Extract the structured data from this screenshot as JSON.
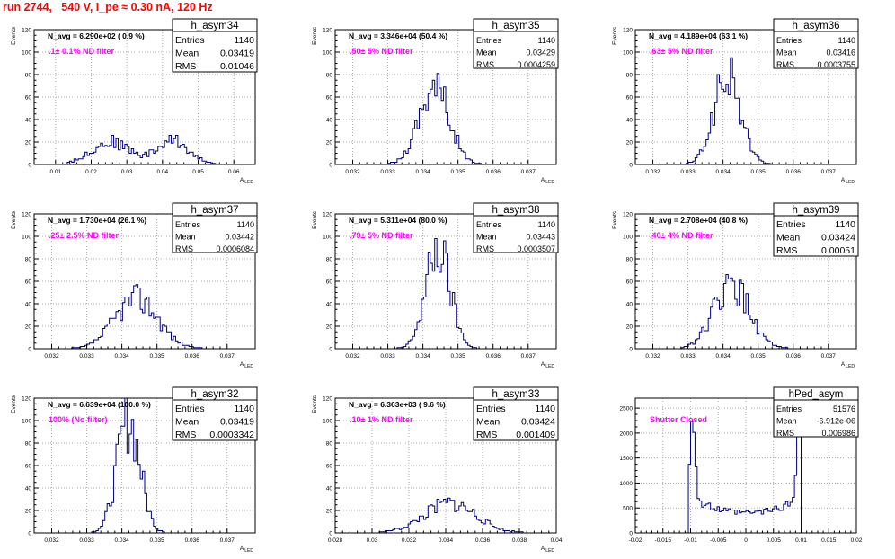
{
  "run_title": "run 2744,   540 V, I_pe ≈ 0.30 nA, 120 Hz",
  "chart_data": [
    {
      "type": "histogram",
      "ylabel": "Events",
      "xlabel": "A_LED",
      "xlim": [
        0.004,
        0.066
      ],
      "ylim": [
        0,
        120
      ],
      "xticks": [
        0.01,
        0.02,
        0.03,
        0.04,
        0.05,
        0.06
      ],
      "xtick_labels": [
        "0.01",
        "0.02",
        "0.03",
        "0.04",
        "0.05",
        "0.06"
      ],
      "yticks": [
        0,
        20,
        40,
        60,
        80,
        100,
        120
      ],
      "annotation": "N_avg = 6.290e+02 ( 0.9 %)",
      "filter_label": ".1± 0.1% ND filter",
      "stats": {
        "name": "h_asym34",
        "rows": [
          [
            "Entries",
            "1140"
          ],
          [
            "Mean",
            "0.03419"
          ],
          [
            "RMS",
            "0.01046"
          ]
        ]
      },
      "profile": {
        "type": "bimodal",
        "peaks": [
          {
            "mu": 0.0255,
            "sigma": 0.0055,
            "amp": 20
          },
          {
            "mu": 0.043,
            "sigma": 0.0045,
            "amp": 21
          }
        ],
        "range": [
          0.013,
          0.056
        ],
        "seed": 34
      }
    },
    {
      "type": "histogram",
      "ylabel": "Events",
      "xlabel": "A_LED",
      "xlim": [
        0.0315,
        0.0378
      ],
      "ylim": [
        0,
        120
      ],
      "xticks": [
        0.032,
        0.033,
        0.034,
        0.035,
        0.036,
        0.037
      ],
      "xtick_labels": [
        "0.032",
        "0.033",
        "0.034",
        "0.035",
        "0.036",
        "0.037"
      ],
      "yticks": [
        0,
        20,
        40,
        60,
        80,
        100,
        120
      ],
      "annotation": "N_avg = 3.346e+04 (50.4 %)",
      "filter_label": ".50± 5% ND filter",
      "stats": {
        "name": "h_asym35",
        "rows": [
          [
            "Entries",
            "1140"
          ],
          [
            "Mean",
            "0.03429"
          ],
          [
            "RMS",
            "0.0004259"
          ]
        ]
      },
      "profile": {
        "type": "gauss",
        "peaks": [
          {
            "mu": 0.03432,
            "sigma": 0.00043,
            "amp": 70
          }
        ],
        "range": [
          0.0326,
          0.0363
        ],
        "seed": 35
      }
    },
    {
      "type": "histogram",
      "ylabel": "Events",
      "xlabel": "A_LED",
      "xlim": [
        0.0315,
        0.0378
      ],
      "ylim": [
        0,
        120
      ],
      "xticks": [
        0.032,
        0.033,
        0.034,
        0.035,
        0.036,
        0.037
      ],
      "xtick_labels": [
        "0.032",
        "0.033",
        "0.034",
        "0.035",
        "0.036",
        "0.037"
      ],
      "yticks": [
        0,
        20,
        40,
        60,
        80,
        100,
        120
      ],
      "annotation": "N_avg = 4.189e+04 (63.1 %)",
      "filter_label": ".63± 5% ND filter",
      "stats": {
        "name": "h_asym36",
        "rows": [
          [
            "Entries",
            "1140"
          ],
          [
            "Mean",
            "0.03416"
          ],
          [
            "RMS",
            "0.0003755"
          ]
        ]
      },
      "profile": {
        "type": "gauss",
        "peaks": [
          {
            "mu": 0.03412,
            "sigma": 0.00038,
            "amp": 78
          }
        ],
        "range": [
          0.0328,
          0.0356
        ],
        "seed": 36
      }
    },
    {
      "type": "histogram",
      "ylabel": "Events",
      "xlabel": "A_LED",
      "xlim": [
        0.0315,
        0.0378
      ],
      "ylim": [
        0,
        120
      ],
      "xticks": [
        0.032,
        0.033,
        0.034,
        0.035,
        0.036,
        0.037
      ],
      "xtick_labels": [
        "0.032",
        "0.033",
        "0.034",
        "0.035",
        "0.036",
        "0.037"
      ],
      "yticks": [
        0,
        20,
        40,
        60,
        80,
        100,
        120
      ],
      "annotation": "N_avg = 1.730e+04 (26.1 %)",
      "filter_label": ".25± 2.5% ND filter",
      "stats": {
        "name": "h_asym37",
        "rows": [
          [
            "Entries",
            "1140"
          ],
          [
            "Mean",
            "0.03442"
          ],
          [
            "RMS",
            "0.0006084"
          ]
        ]
      },
      "profile": {
        "type": "gauss",
        "peaks": [
          {
            "mu": 0.03442,
            "sigma": 0.00061,
            "amp": 45
          }
        ],
        "range": [
          0.0325,
          0.0365
        ],
        "seed": 37
      }
    },
    {
      "type": "histogram",
      "ylabel": "Events",
      "xlabel": "A_LED",
      "xlim": [
        0.0315,
        0.0378
      ],
      "ylim": [
        0,
        120
      ],
      "xticks": [
        0.032,
        0.033,
        0.034,
        0.035,
        0.036,
        0.037
      ],
      "xtick_labels": [
        "0.032",
        "0.033",
        "0.034",
        "0.035",
        "0.036",
        "0.037"
      ],
      "yticks": [
        0,
        20,
        40,
        60,
        80,
        100,
        120
      ],
      "annotation": "N_avg = 5.311e+04 (80.0 %)",
      "filter_label": ".79± 5% ND filter",
      "stats": {
        "name": "h_asym38",
        "rows": [
          [
            "Entries",
            "1140"
          ],
          [
            "Mean",
            "0.03443"
          ],
          [
            "RMS",
            "0.0003507"
          ]
        ]
      },
      "profile": {
        "type": "gauss",
        "peaks": [
          {
            "mu": 0.03443,
            "sigma": 0.00035,
            "amp": 88
          }
        ],
        "range": [
          0.0331,
          0.0358
        ],
        "seed": 38
      }
    },
    {
      "type": "histogram",
      "ylabel": "Events",
      "xlabel": "A_LED",
      "xlim": [
        0.0315,
        0.0378
      ],
      "ylim": [
        0,
        120
      ],
      "xticks": [
        0.032,
        0.033,
        0.034,
        0.035,
        0.036,
        0.037
      ],
      "xtick_labels": [
        "0.032",
        "0.033",
        "0.034",
        "0.035",
        "0.036",
        "0.037"
      ],
      "yticks": [
        0,
        20,
        40,
        60,
        80,
        100,
        120
      ],
      "annotation": "N_avg = 2.708e+04 (40.8 %)",
      "filter_label": ".40± 4% ND filter",
      "stats": {
        "name": "h_asym39",
        "rows": [
          [
            "Entries",
            "1140"
          ],
          [
            "Mean",
            "0.03424"
          ],
          [
            "RMS",
            "0.00051"
          ]
        ]
      },
      "profile": {
        "type": "gauss",
        "peaks": [
          {
            "mu": 0.03424,
            "sigma": 0.00051,
            "amp": 55
          }
        ],
        "range": [
          0.0328,
          0.036
        ],
        "seed": 39
      }
    },
    {
      "type": "histogram",
      "ylabel": "Events",
      "xlabel": "A_LED",
      "xlim": [
        0.0315,
        0.0378
      ],
      "ylim": [
        0,
        120
      ],
      "xticks": [
        0.032,
        0.033,
        0.034,
        0.035,
        0.036,
        0.037
      ],
      "xtick_labels": [
        "0.032",
        "0.033",
        "0.034",
        "0.035",
        "0.036",
        "0.037"
      ],
      "yticks": [
        0,
        20,
        40,
        60,
        80,
        100,
        120
      ],
      "annotation": "N_avg = 6.639e+04 (100.0 %)",
      "filter_label": "100% (No filter)",
      "stats": {
        "name": "h_asym32",
        "rows": [
          [
            "Entries",
            "1140"
          ],
          [
            "Mean",
            "0.03419"
          ],
          [
            "RMS",
            "0.0003342"
          ]
        ]
      },
      "profile": {
        "type": "gauss",
        "peaks": [
          {
            "mu": 0.03419,
            "sigma": 0.00033,
            "amp": 100
          }
        ],
        "range": [
          0.033,
          0.0357
        ],
        "seed": 32
      }
    },
    {
      "type": "histogram",
      "ylabel": "Events",
      "xlabel": "A_LED",
      "xlim": [
        0.028,
        0.04
      ],
      "ylim": [
        0,
        120
      ],
      "xticks": [
        0.028,
        0.03,
        0.032,
        0.034,
        0.036,
        0.038,
        0.04
      ],
      "xtick_labels": [
        "0.028",
        "0.03",
        "0.032",
        "0.034",
        "0.036",
        "0.038",
        "0.04"
      ],
      "yticks": [
        0,
        20,
        40,
        60,
        80,
        100,
        120
      ],
      "annotation": "N_avg = 6.363e+03 ( 9.6 %)",
      "filter_label": ".10± 1% ND filter",
      "stats": {
        "name": "h_asym33",
        "rows": [
          [
            "Entries",
            "1140"
          ],
          [
            "Mean",
            "0.03424"
          ],
          [
            "RMS",
            "0.001409"
          ]
        ]
      },
      "profile": {
        "type": "gauss",
        "peaks": [
          {
            "mu": 0.03424,
            "sigma": 0.00141,
            "amp": 26
          }
        ],
        "range": [
          0.0298,
          0.0384
        ],
        "seed": 33
      }
    },
    {
      "type": "histogram",
      "ylabel": "",
      "xlabel": "",
      "xlim": [
        -0.02,
        0.02
      ],
      "ylim": [
        0,
        2700
      ],
      "xticks": [
        -0.02,
        -0.015,
        -0.01,
        -0.005,
        0,
        0.005,
        0.01,
        0.015,
        0.02
      ],
      "xtick_labels": [
        "-0.02",
        "-0.015",
        "-0.01",
        "-0.005",
        "0",
        "0.005",
        "0.01",
        "0.015",
        "0.02"
      ],
      "yticks": [
        0,
        500,
        1000,
        1500,
        2000,
        2500
      ],
      "annotation": "",
      "filter_label": "Shutter Closed",
      "stats": {
        "name": "hPed_asym",
        "rows": [
          [
            "Entries",
            "51576"
          ],
          [
            "Mean",
            "-6.912e-06"
          ],
          [
            "RMS",
            "0.006986"
          ]
        ]
      },
      "profile": {
        "type": "pedestal",
        "range": [
          -0.0102,
          0.0102
        ],
        "seed": 99
      }
    }
  ]
}
